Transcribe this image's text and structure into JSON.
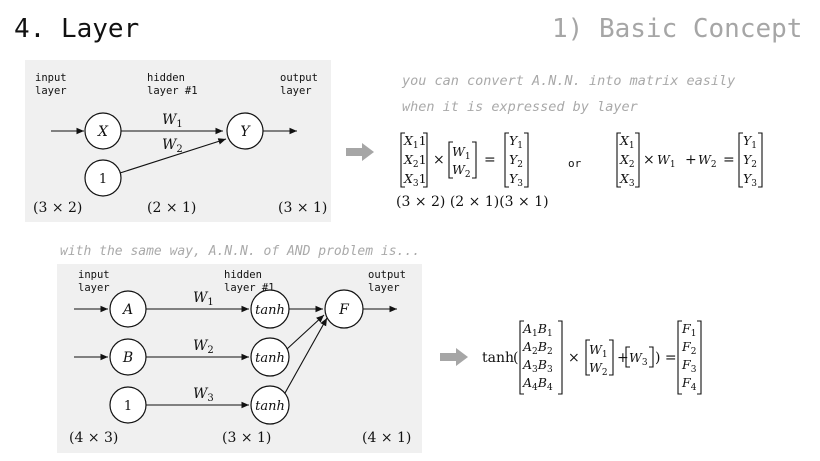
{
  "header": {
    "title": "4. Layer",
    "section": "1) Basic Concept"
  },
  "diagram1": {
    "input_label": "input\nlayer",
    "hidden_label": "hidden\nlayer #1",
    "output_label": "output\nlayer",
    "node_x": "X",
    "node_bias": "1",
    "node_y": "Y",
    "weight1": "W",
    "weight1_sub": "1",
    "weight2": "W",
    "weight2_sub": "2",
    "dim_input": "(3 × 2)",
    "dim_weights": "(2 × 1)",
    "dim_output": "(3 × 1)"
  },
  "notes": {
    "line1": "you can convert A.N.N. into matrix easily",
    "line2": "when it is expressed by layer",
    "and_problem": "with the same way, A.N.N. of AND problem is..."
  },
  "equation1": {
    "operator_or": "or",
    "dims": "(3 × 2) (2 × 1)(3 × 1)"
  },
  "diagram2": {
    "input_label": "input\nlayer",
    "hidden_label": "hidden\nlayer #1",
    "output_label": "output\nlayer",
    "node_a": "A",
    "node_b": "B",
    "node_bias": "1",
    "node_tanh": "tanh",
    "node_f": "F",
    "weight_sym": "W",
    "weight_subs": [
      "1",
      "2",
      "3"
    ],
    "dim_input": "(4 × 3)",
    "dim_weights": "(3 × 1)",
    "dim_output": "(4 × 1)"
  },
  "equation2": {
    "func": "tanh"
  },
  "colors": {
    "panel": "#f0f0f0",
    "arrow": "#a6a6a6",
    "note": "#a9a9a9"
  }
}
